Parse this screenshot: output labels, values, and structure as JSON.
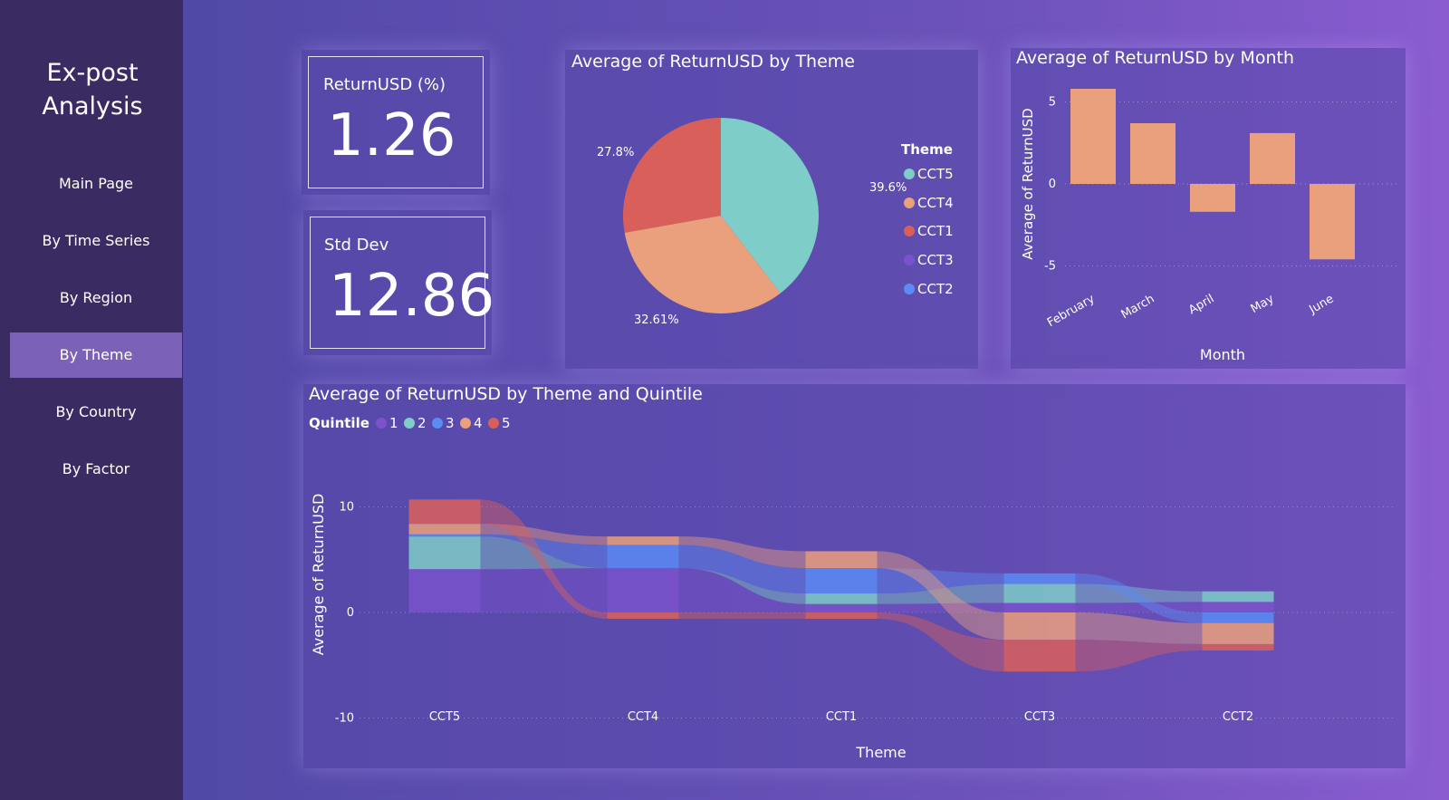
{
  "sidebar": {
    "title_line1": "Ex-post",
    "title_line2": "Analysis",
    "items": [
      {
        "label": "Main Page"
      },
      {
        "label": "By Time Series"
      },
      {
        "label": "By Region"
      },
      {
        "label": "By Theme",
        "active": true
      },
      {
        "label": "By Country"
      },
      {
        "label": "By Factor"
      }
    ]
  },
  "kpis": {
    "return": {
      "label": "ReturnUSD (%)",
      "value": "1.26"
    },
    "stddev": {
      "label": "Std Dev",
      "value": "12.86"
    }
  },
  "colors": {
    "CCT5": "#7ecdc8",
    "CCT4": "#eba07d",
    "CCT1": "#d9605a",
    "CCT3": "#7a52cc",
    "CCT2": "#5b8bf5",
    "bar": "#eba07d",
    "sidebar": "#3a2b62",
    "active_nav": "#7b62b8"
  },
  "pie": {
    "title": "Average of ReturnUSD by Theme",
    "legend_title": "Theme",
    "legend": [
      "CCT5",
      "CCT4",
      "CCT1",
      "CCT3",
      "CCT2"
    ],
    "labels": {
      "a": "39.6%",
      "b": "32.61%",
      "c": "27.8%"
    }
  },
  "bar_chart_text": {
    "title": "Average of ReturnUSD by Month",
    "xlabel": "Month",
    "ylabel": "Average of ReturnUSD",
    "ticks": [
      "5",
      "0",
      "-5"
    ]
  },
  "ribbon_text": {
    "title": "Average of ReturnUSD by Theme and Quintile",
    "legend_title": "Quintile",
    "legend": [
      "1",
      "2",
      "3",
      "4",
      "5"
    ],
    "ylabel": "Average of ReturnUSD",
    "xlabel": "Theme",
    "ticks": [
      "10",
      "0",
      "-10"
    ],
    "categories": [
      "CCT5",
      "CCT4",
      "CCT1",
      "CCT3",
      "CCT2"
    ]
  },
  "chart_data": [
    {
      "type": "pie",
      "title": "Average of ReturnUSD by Theme",
      "categories": [
        "CCT5",
        "CCT4",
        "CCT1",
        "CCT3",
        "CCT2"
      ],
      "values": [
        39.6,
        32.61,
        27.8,
        0,
        0
      ],
      "value_unit": "percent"
    },
    {
      "type": "bar",
      "title": "Average of ReturnUSD by Month",
      "categories": [
        "February",
        "March",
        "April",
        "May",
        "June"
      ],
      "values": [
        5.8,
        3.7,
        -1.7,
        3.1,
        -4.6
      ],
      "xlabel": "Month",
      "ylabel": "Average of ReturnUSD",
      "ylim": [
        -6,
        6
      ]
    },
    {
      "type": "bar",
      "subtype": "ribbon",
      "title": "Average of ReturnUSD by Theme and Quintile",
      "categories": [
        "CCT5",
        "CCT4",
        "CCT1",
        "CCT3",
        "CCT2"
      ],
      "series": [
        {
          "name": "1",
          "values": [
            4.1,
            4.2,
            0.8,
            0.9,
            1.0
          ]
        },
        {
          "name": "2",
          "values": [
            3.1,
            0,
            1.0,
            1.8,
            1.0
          ]
        },
        {
          "name": "3",
          "values": [
            0.2,
            2.2,
            2.4,
            1.0,
            -1.0
          ]
        },
        {
          "name": "4",
          "values": [
            1.0,
            0.8,
            1.6,
            -2.6,
            -2.0
          ]
        },
        {
          "name": "5",
          "values": [
            2.3,
            -0.6,
            -0.6,
            -3.0,
            -0.6
          ]
        }
      ],
      "xlabel": "Theme",
      "ylabel": "Average of ReturnUSD",
      "ylim": [
        -10,
        10
      ]
    }
  ]
}
